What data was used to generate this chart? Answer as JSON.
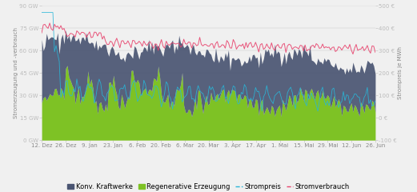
{
  "title": "",
  "ylabel_left": "Stromerzeugung und -verbrauch",
  "ylabel_right": "Strompreis je MWh",
  "ylim_left": [
    0,
    90
  ],
  "ylim_right": [
    -100,
    500
  ],
  "yticks_left": [
    0,
    15,
    30,
    45,
    60,
    75,
    90
  ],
  "yticks_left_labels": [
    "0 GW",
    "15 GW",
    "30 GW",
    "45 GW",
    "60 GW",
    "75 GW",
    "90 GW"
  ],
  "yticks_right": [
    -100,
    0,
    100,
    200,
    300,
    400,
    500
  ],
  "yticks_right_labels": [
    "-100 €",
    "0 €",
    "100 €",
    "200 €",
    "300 €",
    "400 €",
    "500 €"
  ],
  "n_points": 210,
  "x_tick_labels": [
    "12. Dez",
    "26. Dez",
    "9. Jan",
    "23. Jan",
    "6. Feb",
    "20. Feb",
    "6. Mar",
    "20. Mar",
    "3. Apr",
    "17. Apr",
    "1. Mai",
    "15. Mai",
    "29. Mai",
    "12. Jun",
    "26. Jun"
  ],
  "color_konv": "#4a5572",
  "color_regen": "#7ec225",
  "color_preis": "#29b6d8",
  "color_verbrauch": "#e8446e",
  "bg_color": "#f0f0f0",
  "legend_labels": [
    "Konv. Kraftwerke",
    "Regenerative Erzeugung",
    "Strompreis",
    "Stromverbrauch"
  ],
  "fontsize_tick": 5,
  "fontsize_legend": 6,
  "fontsize_ylabel": 5
}
